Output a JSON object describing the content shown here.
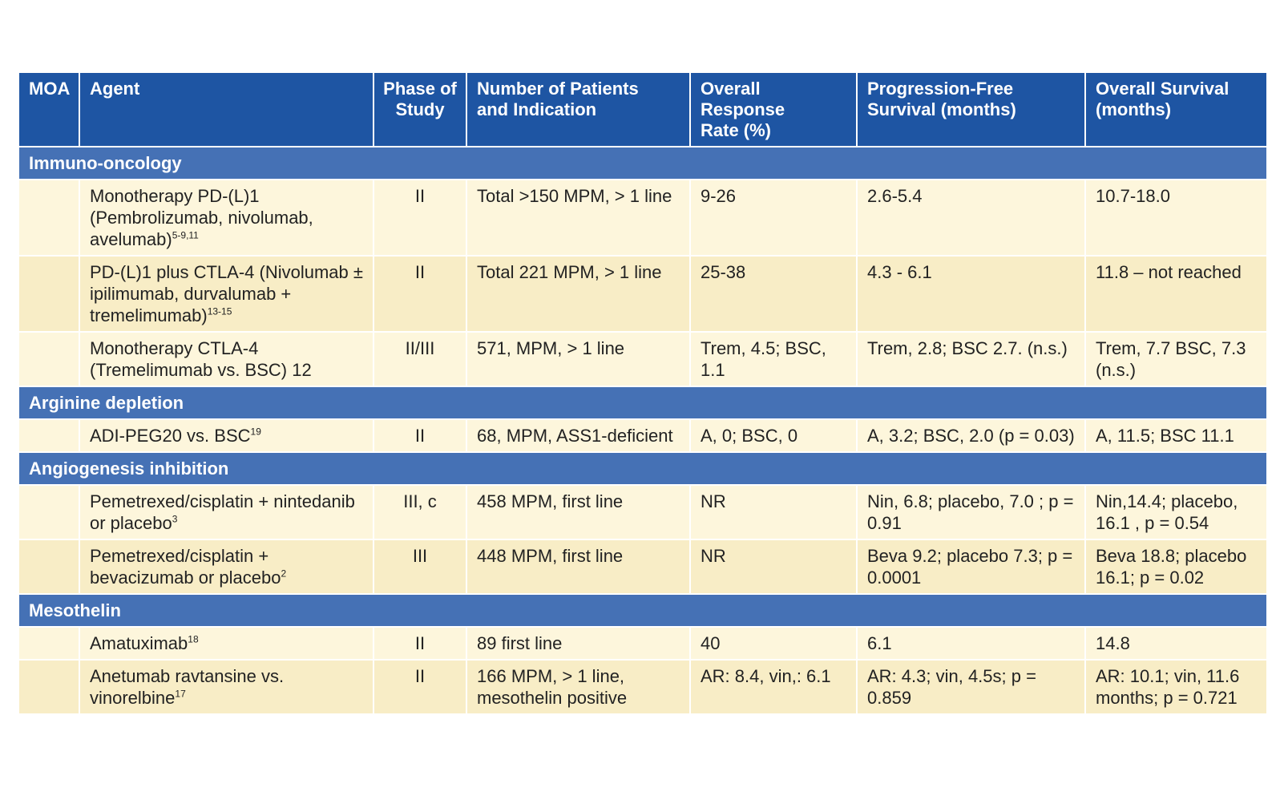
{
  "table": {
    "headers": [
      {
        "line1": "MOA",
        "line2": ""
      },
      {
        "line1": "Agent",
        "line2": ""
      },
      {
        "line1": "Phase of",
        "line2": "Study"
      },
      {
        "line1": "Number of Patients",
        "line2": "and Indication"
      },
      {
        "line1": "Overall Response",
        "line2": "Rate (%)"
      },
      {
        "line1": "Progression-Free",
        "line2": "Survival (months)"
      },
      {
        "line1": "Overall Survival",
        "line2": "(months)"
      }
    ],
    "sections": [
      {
        "title": "Immuno-oncology",
        "rows": [
          {
            "moa": "",
            "agent": "Monotherapy PD-(L)1 (Pembrolizumab, nivolumab, avelumab)",
            "ref": "5-9,11",
            "phase": "II",
            "patients": "Total >150 MPM, > 1 line",
            "orr": "9-26",
            "pfs": "2.6-5.4",
            "os": "10.7-18.0"
          },
          {
            "moa": "",
            "agent": "PD-(L)1 plus CTLA-4 (Nivolumab ± ipilimumab, durvalumab + tremelimumab)",
            "ref": "13-15",
            "phase": "II",
            "patients": "Total 221 MPM, > 1 line",
            "orr": "25-38",
            "pfs": "4.3 - 6.1",
            "os": "11.8 – not reached"
          },
          {
            "moa": "",
            "agent": "Monotherapy CTLA-4 (Tremelimumab vs. BSC) 12",
            "ref": "",
            "phase": "II/III",
            "patients": "571, MPM, > 1 line",
            "orr": "Trem, 4.5; BSC, 1.1",
            "pfs": "Trem, 2.8; BSC 2.7. (n.s.)",
            "os": "Trem, 7.7 BSC, 7.3 (n.s.)"
          }
        ]
      },
      {
        "title": "Arginine depletion",
        "rows": [
          {
            "moa": "",
            "agent": "ADI-PEG20 vs. BSC",
            "ref": "19",
            "phase": "II",
            "patients": "68, MPM, ASS1-deficient",
            "orr": "A, 0; BSC, 0",
            "pfs": "A, 3.2; BSC, 2.0 (p = 0.03)",
            "os": "A, 11.5; BSC 11.1"
          }
        ]
      },
      {
        "title": "Angiogenesis inhibition",
        "rows": [
          {
            "moa": "",
            "agent": "Pemetrexed/cisplatin + nintedanib or placebo",
            "ref": "3",
            "phase": "III, c",
            "patients": "458 MPM, first line",
            "orr": "NR",
            "pfs": "Nin, 6.8; placebo, 7.0 ; p = 0.91",
            "os": "Nin,14.4; placebo, 16.1 , p = 0.54"
          },
          {
            "moa": "",
            "agent": "Pemetrexed/cisplatin + bevacizumab or placebo",
            "ref": "2",
            "phase": "III",
            "patients": "448 MPM, first line",
            "orr": "NR",
            "pfs": "Beva 9.2; placebo 7.3; p = 0.0001",
            "os": "Beva 18.8; placebo 16.1; p = 0.02"
          }
        ]
      },
      {
        "title": "Mesothelin",
        "rows": [
          {
            "moa": "",
            "agent": "Amatuximab",
            "ref": "18",
            "phase": "II",
            "patients": "89 first line",
            "orr": "40",
            "pfs": "6.1",
            "os": "14.8"
          },
          {
            "moa": "",
            "agent": "Anetumab ravtansine vs. vinorelbine",
            "ref": "17",
            "phase": "II",
            "patients": "166 MPM, > 1 line, mesothelin positive",
            "orr": "AR: 8.4, vin,: 6.1",
            "pfs": "AR: 4.3; vin, 4.5s; p = 0.859",
            "os": "AR: 10.1; vin, 11.6 months; p = 0.721"
          }
        ]
      }
    ]
  },
  "colors": {
    "header_bg": "#1e55a3",
    "section_bg": "#4571b5",
    "row_light": "#fdf6dc",
    "row_dark": "#f8edc6",
    "text": "#222222"
  }
}
